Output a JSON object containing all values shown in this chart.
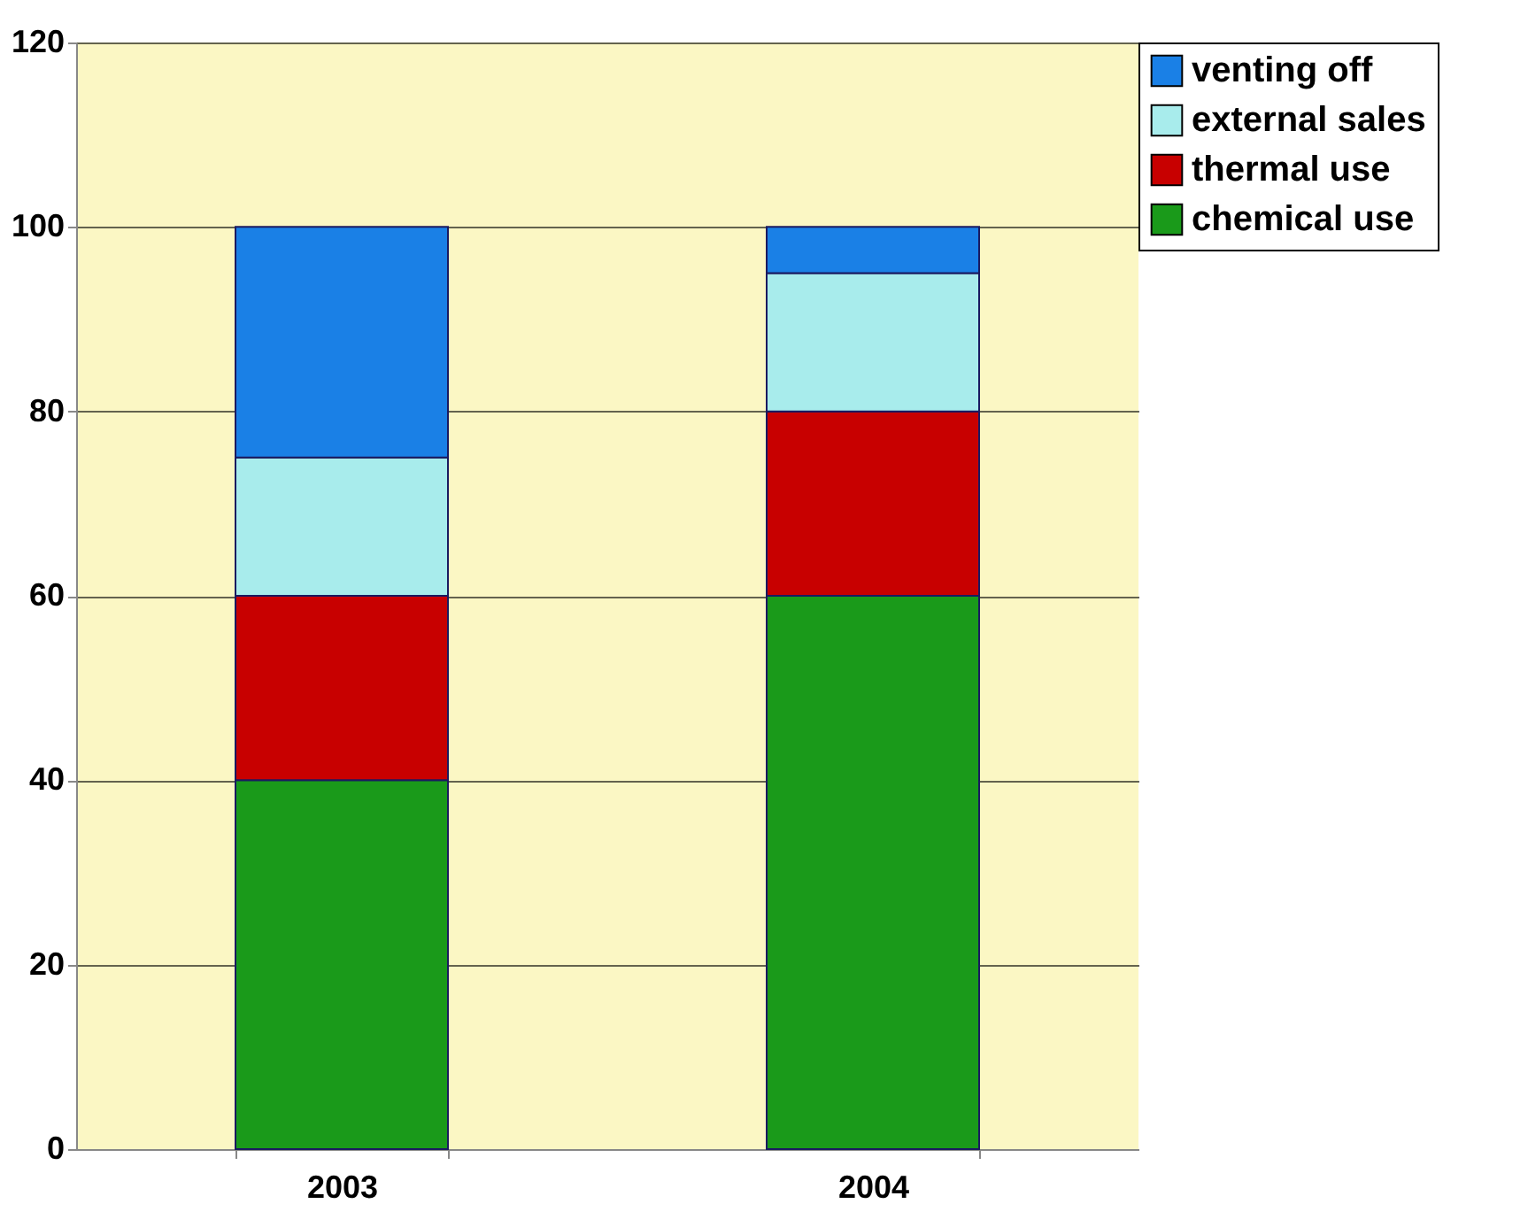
{
  "chart_data": {
    "type": "bar",
    "stacked": true,
    "categories": [
      "2003",
      "2004"
    ],
    "series": [
      {
        "name": "chemical use",
        "color": "#1a9a1a",
        "values": [
          40,
          60
        ]
      },
      {
        "name": "thermal use",
        "color": "#c80000",
        "values": [
          20,
          20
        ]
      },
      {
        "name": "external sales",
        "color": "#a8ecec",
        "values": [
          15,
          15
        ]
      },
      {
        "name": "venting off",
        "color": "#1a80e6",
        "values": [
          25,
          5
        ]
      }
    ],
    "ylim": [
      0,
      120
    ],
    "yticks": [
      0,
      20,
      40,
      60,
      80,
      100,
      120
    ],
    "grid": "y",
    "legend": "right"
  }
}
